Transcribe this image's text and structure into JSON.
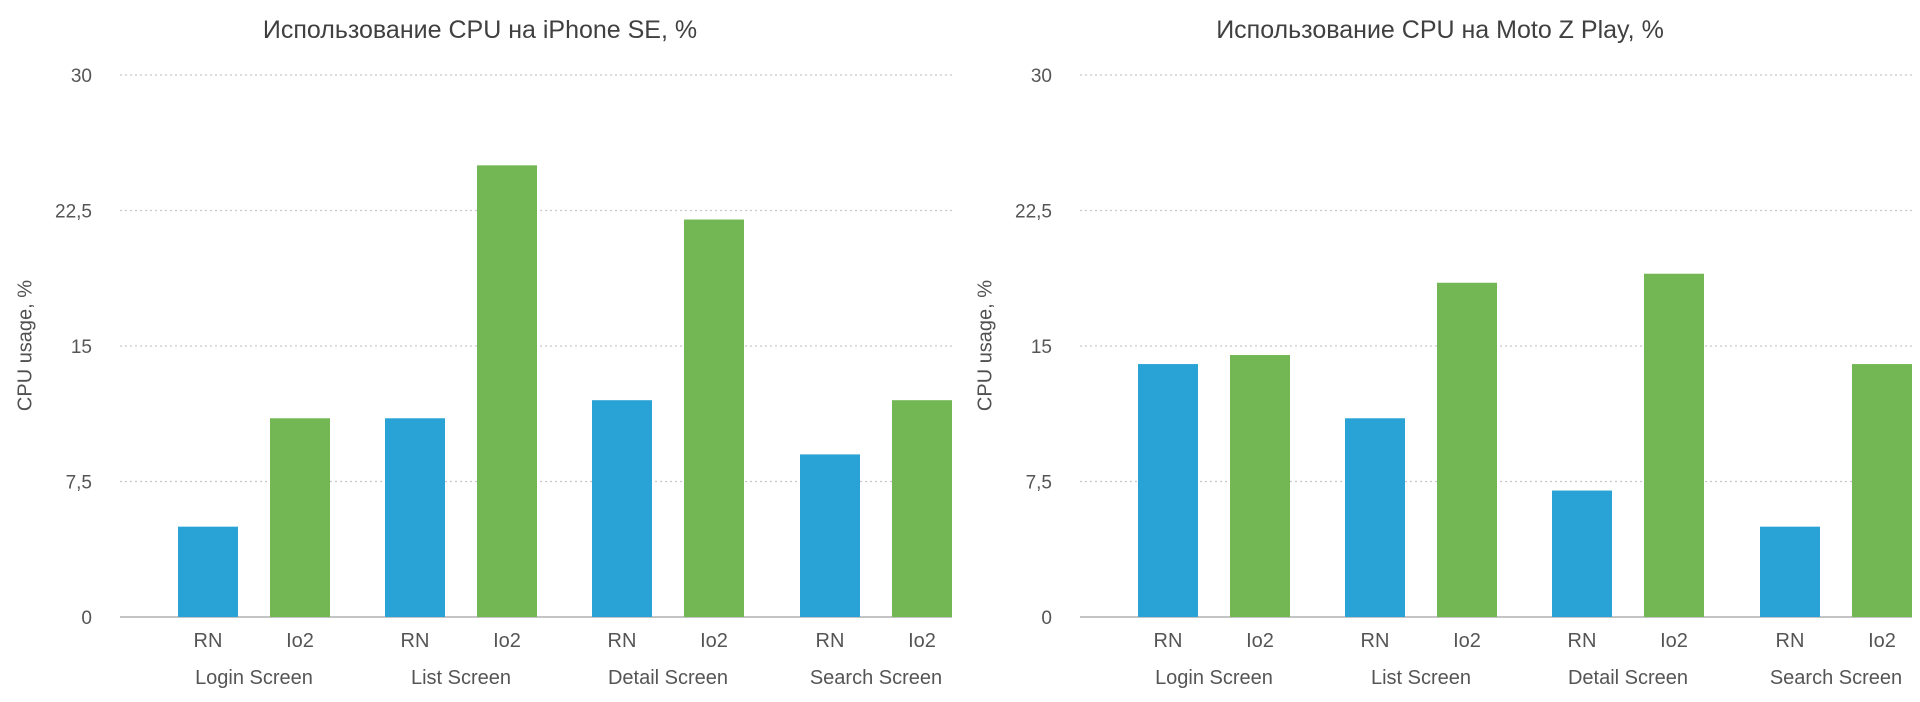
{
  "chart_data": [
    {
      "type": "bar",
      "title": "Использование CPU на iPhone SE, %",
      "ylabel": "CPU usage, %",
      "ylim": [
        0,
        30
      ],
      "yticks": [
        "0",
        "7,5",
        "15",
        "22,5",
        "30"
      ],
      "grid": true,
      "groups": [
        {
          "label": "Login Screen",
          "bars": [
            {
              "label": "RN",
              "value": 5
            },
            {
              "label": "Io2",
              "value": 11
            }
          ]
        },
        {
          "label": "List Screen",
          "bars": [
            {
              "label": "RN",
              "value": 11
            },
            {
              "label": "Io2",
              "value": 25
            }
          ]
        },
        {
          "label": "Detail Screen",
          "bars": [
            {
              "label": "RN",
              "value": 12
            },
            {
              "label": "Io2",
              "value": 22
            }
          ]
        },
        {
          "label": "Search Screen",
          "bars": [
            {
              "label": "RN",
              "value": 9
            },
            {
              "label": "Io2",
              "value": 12
            }
          ]
        }
      ],
      "colors": {
        "RN": "#29a3d5",
        "Io2": "#72b753"
      }
    },
    {
      "type": "bar",
      "title": "Использование CPU на Moto Z Play, %",
      "ylabel": "CPU usage, %",
      "ylim": [
        0,
        30
      ],
      "yticks": [
        "0",
        "7,5",
        "15",
        "22,5",
        "30"
      ],
      "grid": true,
      "groups": [
        {
          "label": "Login Screen",
          "bars": [
            {
              "label": "RN",
              "value": 14
            },
            {
              "label": "Io2",
              "value": 14.5
            }
          ]
        },
        {
          "label": "List Screen",
          "bars": [
            {
              "label": "RN",
              "value": 11
            },
            {
              "label": "Io2",
              "value": 18.5
            }
          ]
        },
        {
          "label": "Detail Screen",
          "bars": [
            {
              "label": "RN",
              "value": 7
            },
            {
              "label": "Io2",
              "value": 19
            }
          ]
        },
        {
          "label": "Search Screen",
          "bars": [
            {
              "label": "RN",
              "value": 5
            },
            {
              "label": "Io2",
              "value": 14
            }
          ]
        }
      ],
      "colors": {
        "RN": "#29a3d5",
        "Io2": "#72b753"
      }
    }
  ]
}
